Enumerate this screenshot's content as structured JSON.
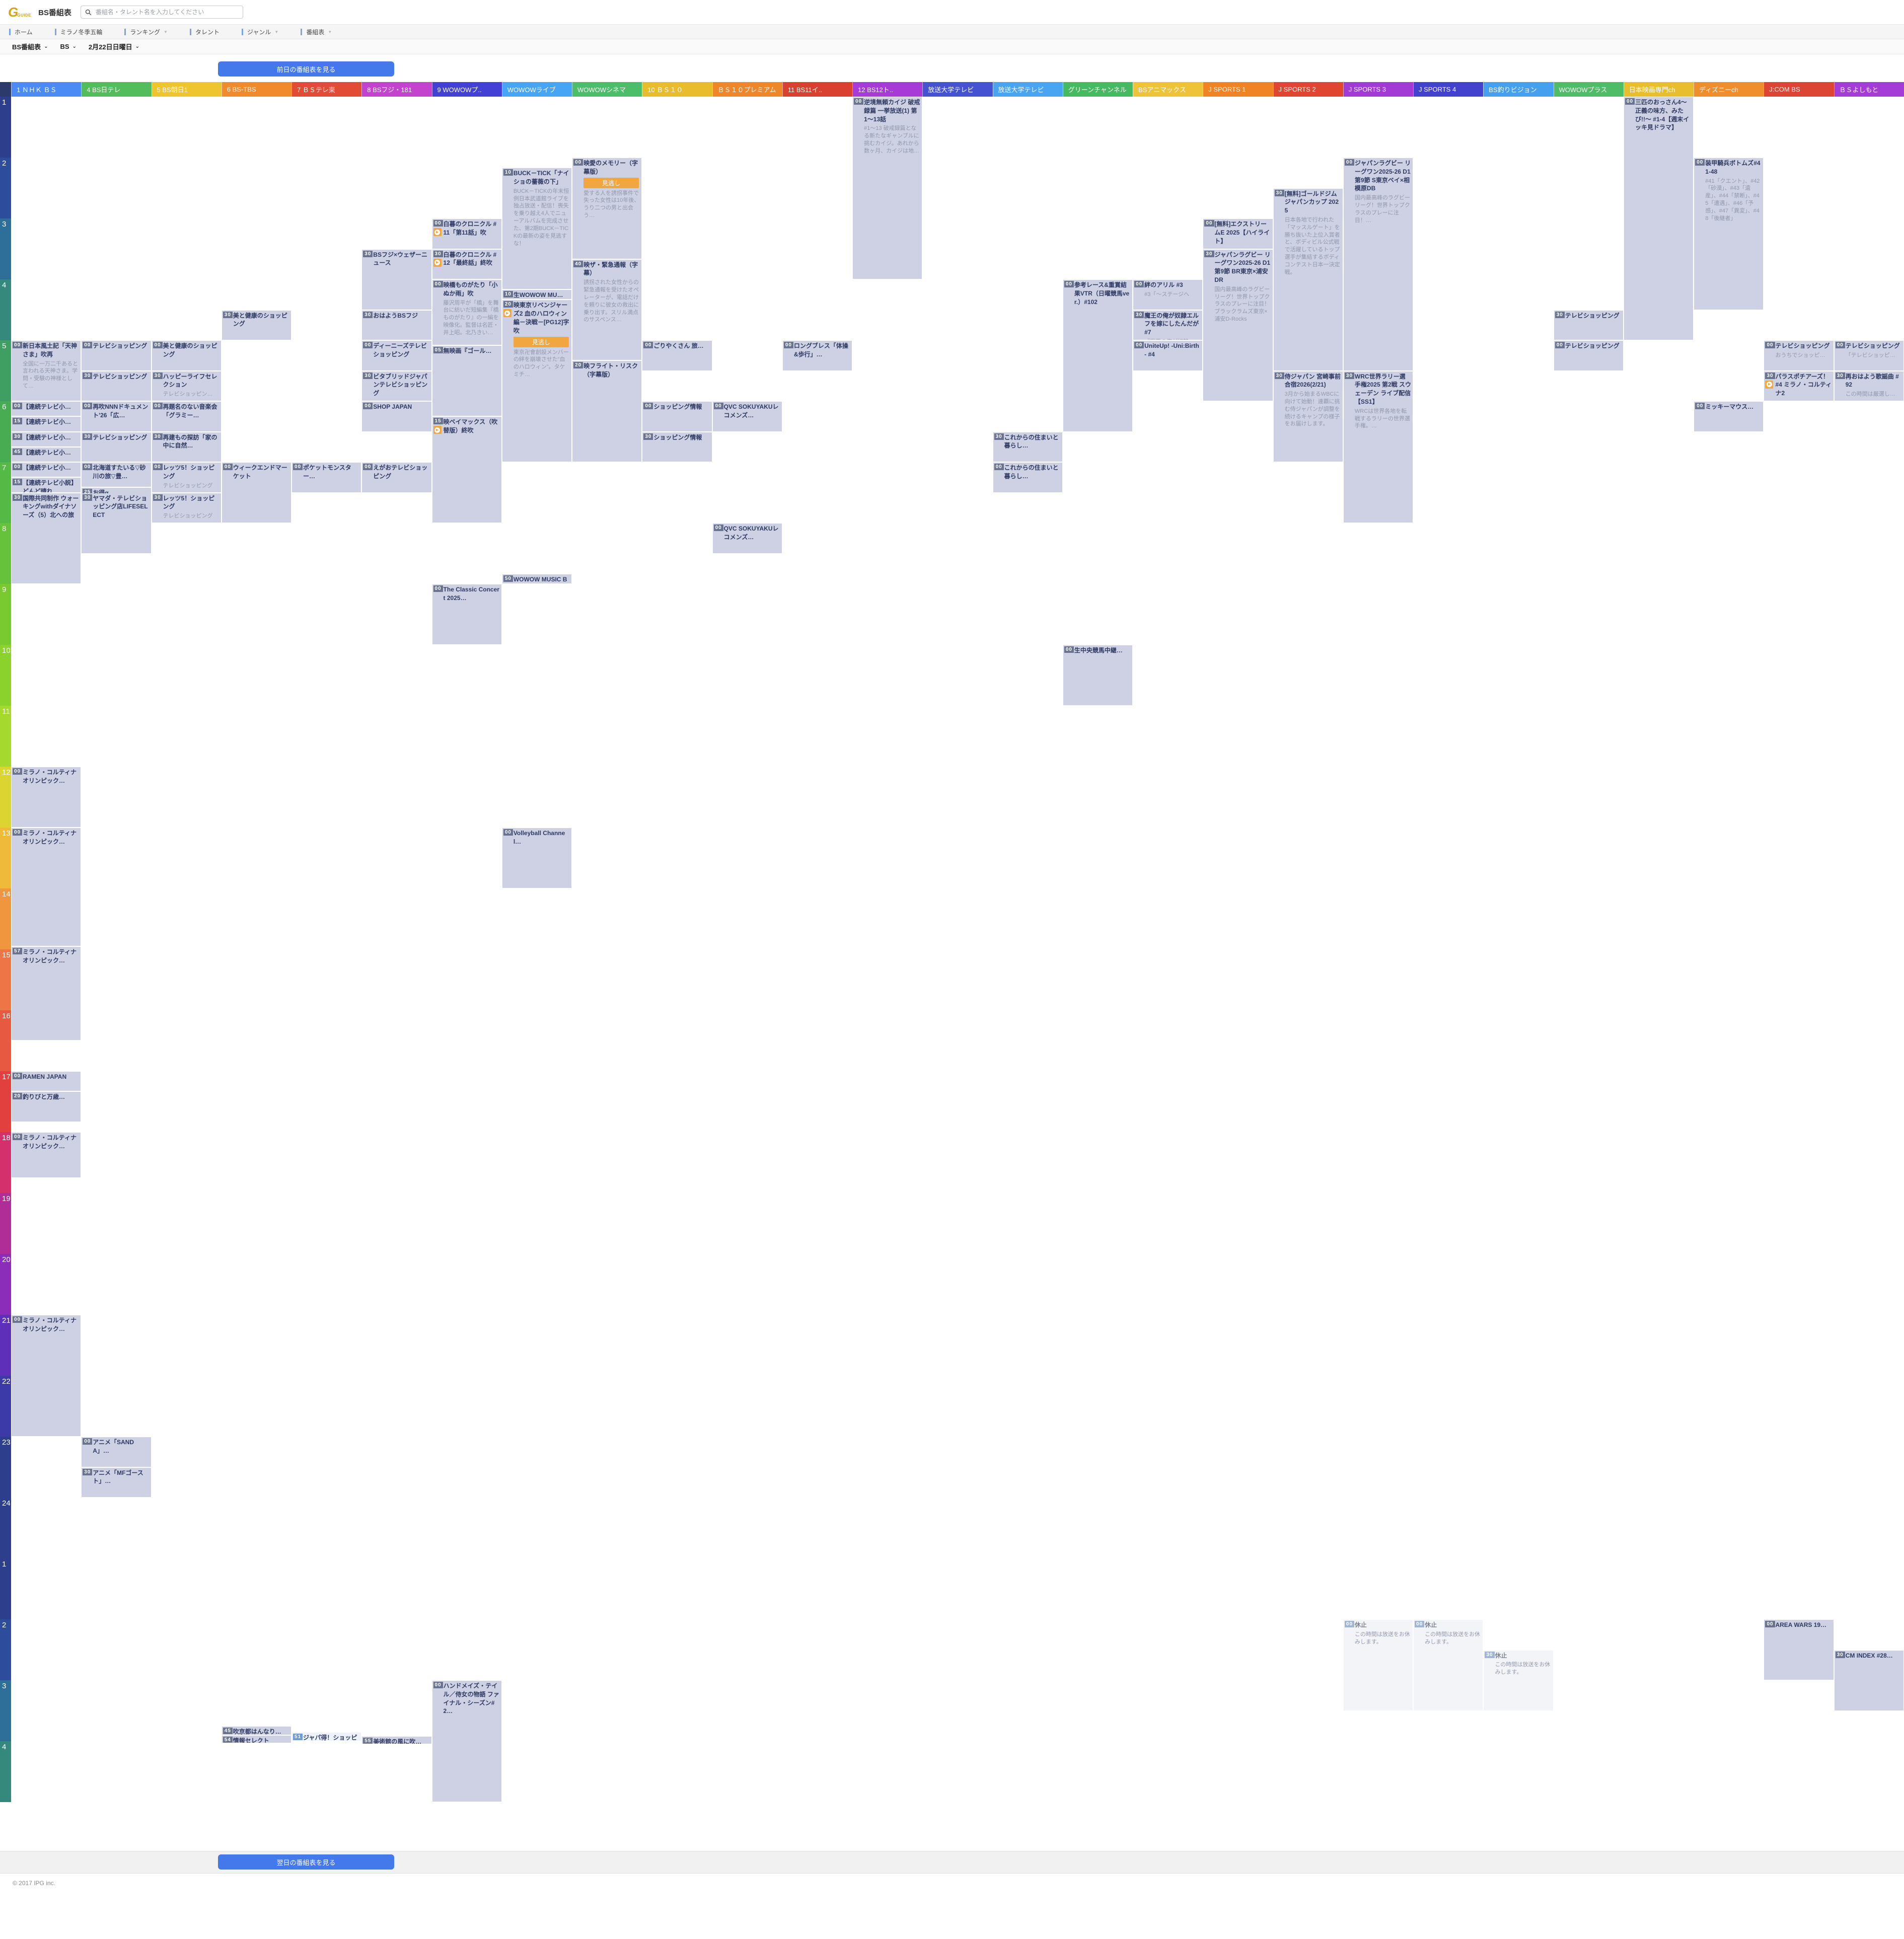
{
  "header": {
    "logo_g": "G",
    "logo_guide": "GUIDE",
    "title": "BS番組表",
    "search_placeholder": "番組名・タレント名を入力してください"
  },
  "nav": {
    "items": [
      {
        "label": "ホーム",
        "caret": false
      },
      {
        "label": "ミラノ冬季五輪",
        "caret": false
      },
      {
        "label": "ランキング",
        "caret": true
      },
      {
        "label": "タレント",
        "caret": false
      },
      {
        "label": "ジャンル",
        "caret": true
      },
      {
        "label": "番組表",
        "caret": true
      }
    ]
  },
  "filters": [
    {
      "label": "BS番組表"
    },
    {
      "label": "BS"
    },
    {
      "label": "2月22日日曜日"
    }
  ],
  "buttons": {
    "prev_day": "前日の番組表を見る",
    "next_day": "翌日の番組表を見る"
  },
  "footer": {
    "copyright": "© 2017 IPG inc."
  },
  "labels": {
    "miss_badge": "見逃し"
  },
  "grid": {
    "hours": [
      {
        "label": "1",
        "color": "#2c3e8c"
      },
      {
        "label": "2",
        "color": "#2d4d9c"
      },
      {
        "label": "3",
        "color": "#2e6f9a"
      },
      {
        "label": "4",
        "color": "#35897c"
      },
      {
        "label": "5",
        "color": "#3f9f63"
      },
      {
        "label": "6",
        "color": "#47ac52"
      },
      {
        "label": "7",
        "color": "#55b945"
      },
      {
        "label": "8",
        "color": "#66c23a"
      },
      {
        "label": "9",
        "color": "#79ca31"
      },
      {
        "label": "10",
        "color": "#8bd22c"
      },
      {
        "label": "11",
        "color": "#a6d92e"
      },
      {
        "label": "12",
        "color": "#dcd531"
      },
      {
        "label": "13",
        "color": "#efba3a"
      },
      {
        "label": "14",
        "color": "#f0963e"
      },
      {
        "label": "15",
        "color": "#ee7646"
      },
      {
        "label": "16",
        "color": "#e75940"
      },
      {
        "label": "17",
        "color": "#e2403f"
      },
      {
        "label": "18",
        "color": "#d3306c"
      },
      {
        "label": "19",
        "color": "#b02d97"
      },
      {
        "label": "20",
        "color": "#8b2db9"
      },
      {
        "label": "21",
        "color": "#5e2fb9"
      },
      {
        "label": "22",
        "color": "#3c3aa9"
      },
      {
        "label": "23",
        "color": "#2c3e8c"
      },
      {
        "label": "24",
        "color": "#2c3e8c"
      },
      {
        "label": "1",
        "color": "#2c3e8c"
      },
      {
        "label": "2",
        "color": "#2d4d9c"
      },
      {
        "label": "3",
        "color": "#2e6f9a"
      },
      {
        "label": "4",
        "color": "#35897c"
      }
    ],
    "channels": [
      {
        "name": "1 ＮＨＫ ＢＳ",
        "color": "#4b8bf5"
      },
      {
        "name": "4 BS日テレ",
        "color": "#53bd5c"
      },
      {
        "name": "5 BS朝日1",
        "color": "#eec52f"
      },
      {
        "name": "6 BS-TBS",
        "color": "#f08a2c"
      },
      {
        "name": "7 ＢＳテレ東",
        "color": "#e24b36"
      },
      {
        "name": "8 BSフジ・181",
        "color": "#c343cf"
      },
      {
        "name": "9 WOWOWプ..",
        "color": "#4340d6"
      },
      {
        "name": "WOWOWライブ",
        "color": "#46a5f5"
      },
      {
        "name": "WOWOWシネマ",
        "color": "#4cbd69"
      },
      {
        "name": "10 ＢＳ１０",
        "color": "#e8bc2d"
      },
      {
        "name": "ＢＳ１０プレミアム",
        "color": "#f0862a"
      },
      {
        "name": "11 BS11イ..",
        "color": "#da4030"
      },
      {
        "name": "12 BS12ト..",
        "color": "#a83ad8"
      },
      {
        "name": "放送大学テレビ",
        "color": "#4553d2"
      },
      {
        "name": "放送大学テレビ",
        "color": "#49a4f2"
      },
      {
        "name": "グリーンチャンネル",
        "color": "#46ba60"
      },
      {
        "name": "BSアニマックス",
        "color": "#eec33a"
      },
      {
        "name": "J SPORTS 1",
        "color": "#ef8326"
      },
      {
        "name": "J SPORTS 2",
        "color": "#e0462f"
      },
      {
        "name": "J SPORTS 3",
        "color": "#a43ad6"
      },
      {
        "name": "J SPORTS 4",
        "color": "#4342cf"
      },
      {
        "name": "BS釣りビジョン",
        "color": "#45a1f0"
      },
      {
        "name": "WOWOWプラス",
        "color": "#4fbd68"
      },
      {
        "name": "日本映画専門ch",
        "color": "#e9be2e"
      },
      {
        "name": "ディズニーch",
        "color": "#f08e2d"
      },
      {
        "name": "J:COM BS",
        "color": "#dc4534"
      },
      {
        "name": "ＢＳよしもと",
        "color": "#a63cd8"
      }
    ],
    "programs": [
      {
        "ch": 0,
        "h": 5,
        "m": 0,
        "dur": 60,
        "title": "新日本風土記「天神さま」吹再",
        "desc": "全国に一万二千あると言われる天神さま。学問・受験の神様として…"
      },
      {
        "ch": 0,
        "h": 6,
        "m": 0,
        "dur": 15,
        "title": "【連続テレビ小…"
      },
      {
        "ch": 0,
        "h": 6,
        "m": 15,
        "dur": 15,
        "title": "【連続テレビ小…"
      },
      {
        "ch": 0,
        "h": 6,
        "m": 30,
        "dur": 15,
        "title": "【連続テレビ小…"
      },
      {
        "ch": 0,
        "h": 6,
        "m": 45,
        "dur": 15,
        "title": "【連続テレビ小…"
      },
      {
        "ch": 0,
        "h": 7,
        "m": 0,
        "dur": 15,
        "title": "【連続テレビ小…"
      },
      {
        "ch": 0,
        "h": 7,
        "m": 15,
        "dur": 15,
        "title": "【連続テレビ小説】どんど晴れ"
      },
      {
        "ch": 0,
        "h": 7,
        "m": 30,
        "dur": 90,
        "title": "国際共同制作 ウォーキングwithダイナソーズ（5）北への旅"
      },
      {
        "ch": 0,
        "h": 12,
        "m": 0,
        "dur": 60,
        "title": "ミラノ・コルティナオリンピック…"
      },
      {
        "ch": 0,
        "h": 13,
        "m": 0,
        "dur": 117,
        "title": "ミラノ・コルティナオリンピック…"
      },
      {
        "ch": 0,
        "h": 14,
        "m": 57,
        "dur": 93,
        "title": "ミラノ・コルティナオリンピック…"
      },
      {
        "ch": 0,
        "h": 17,
        "m": 0,
        "dur": 20,
        "title": "RAMEN JAPAN"
      },
      {
        "ch": 0,
        "h": 17,
        "m": 20,
        "dur": 30,
        "title": "釣りびと万歳…"
      },
      {
        "ch": 0,
        "h": 18,
        "m": 0,
        "dur": 45,
        "title": "ミラノ・コルティナオリンピック…"
      },
      {
        "ch": 0,
        "h": 21,
        "m": 0,
        "dur": 120,
        "title": "ミラノ・コルティナオリンピック…"
      },
      {
        "ch": 1,
        "h": 5,
        "m": 0,
        "dur": 30,
        "title": "テレビショッピング"
      },
      {
        "ch": 1,
        "h": 5,
        "m": 30,
        "dur": 30,
        "title": "テレビショッピング"
      },
      {
        "ch": 1,
        "h": 6,
        "m": 0,
        "dur": 30,
        "title": "再吹NNNドキュメント'26「広…"
      },
      {
        "ch": 1,
        "h": 6,
        "m": 30,
        "dur": 30,
        "title": "テレビショッピング"
      },
      {
        "ch": 1,
        "h": 7,
        "m": 0,
        "dur": 25,
        "title": "北海道すたいる▽砂川の旅▽豊…"
      },
      {
        "ch": 1,
        "h": 7,
        "m": 25,
        "dur": 5,
        "title": "お得α"
      },
      {
        "ch": 1,
        "h": 7,
        "m": 30,
        "dur": 60,
        "title": "ヤマダ・テレビショッピング店LIFESELECT"
      },
      {
        "ch": 1,
        "h": 23,
        "m": 0,
        "dur": 30,
        "title": "アニメ「SANDA」…"
      },
      {
        "ch": 1,
        "h": 23,
        "m": 30,
        "dur": 30,
        "title": "アニメ「MFゴースト」…"
      },
      {
        "ch": 2,
        "h": 5,
        "m": 0,
        "dur": 30,
        "title": "美と健康のショッピング"
      },
      {
        "ch": 2,
        "h": 5,
        "m": 30,
        "dur": 30,
        "title": "ハッピーライフセレクション",
        "desc": "テレビショッピン…"
      },
      {
        "ch": 2,
        "h": 6,
        "m": 0,
        "dur": 30,
        "title": "再題名のない音楽会「グラミー…"
      },
      {
        "ch": 2,
        "h": 6,
        "m": 30,
        "dur": 30,
        "title": "再建もの探訪「家の中に自然…"
      },
      {
        "ch": 2,
        "h": 7,
        "m": 0,
        "dur": 30,
        "title": "レッツ5！ショッピング",
        "desc": "テレビショッピング"
      },
      {
        "ch": 2,
        "h": 7,
        "m": 30,
        "dur": 30,
        "title": "レッツ5！ショッピング",
        "desc": "テレビショッピング"
      },
      {
        "ch": 3,
        "h": 4,
        "m": 30,
        "dur": 30,
        "title": "美と健康のショッピング"
      },
      {
        "ch": 3,
        "h": 7,
        "m": 0,
        "dur": 60,
        "title": "ウィークエンドマーケット"
      },
      {
        "ch": 3,
        "h": 27,
        "m": 45,
        "dur": 9,
        "title": "吹京都はんなり…"
      },
      {
        "ch": 3,
        "h": 27,
        "m": 54,
        "dur": 6,
        "title": "情報セレクト"
      },
      {
        "ch": 4,
        "h": 7,
        "m": 0,
        "dur": 30,
        "title": "ポケットモンスター…"
      },
      {
        "ch": 4,
        "h": 27,
        "m": 51,
        "dur": 9,
        "title": "ジャパ得！ショッピング",
        "desc": "ジャパネットたか…",
        "now": 1
      },
      {
        "ch": 5,
        "h": 3,
        "m": 30,
        "dur": 60,
        "title": "BSフジ×ウェザーニュース"
      },
      {
        "ch": 5,
        "h": 4,
        "m": 30,
        "dur": 30,
        "title": "おはようBSフジ"
      },
      {
        "ch": 5,
        "h": 5,
        "m": 0,
        "dur": 30,
        "title": "ディーニーズテレビショッピング"
      },
      {
        "ch": 5,
        "h": 5,
        "m": 30,
        "dur": 30,
        "title": "ビタブリッドジャパンテレビショッピング"
      },
      {
        "ch": 5,
        "h": 6,
        "m": 0,
        "dur": 30,
        "title": "SHOP JAPAN"
      },
      {
        "ch": 5,
        "h": 7,
        "m": 0,
        "dur": 30,
        "title": "えがおテレビショッピング"
      },
      {
        "ch": 5,
        "h": 27,
        "m": 55,
        "dur": 5,
        "title": "美術館の風に吹…"
      },
      {
        "ch": 6,
        "h": 3,
        "m": 0,
        "dur": 30,
        "title": "白暮のクロニクル #11「第11話」吹",
        "p": 1
      },
      {
        "ch": 6,
        "h": 3,
        "m": 30,
        "dur": 30,
        "title": "白暮のクロニクル #12「最終話」終吹",
        "p": 1
      },
      {
        "ch": 6,
        "h": 4,
        "m": 0,
        "dur": 65,
        "title": "映橋ものがたり「小ぬか雨」吹",
        "desc": "藤沢周平が「橋」を舞台に紡いだ短編集『橋ものがたり』の一編を映像化。監督は名匠・井上昭。北乃きい…"
      },
      {
        "ch": 6,
        "h": 5,
        "m": 5,
        "dur": 70,
        "title": "無映画『ゴール…"
      },
      {
        "ch": 6,
        "h": 6,
        "m": 15,
        "dur": 105,
        "title": "映ベイマックス（吹替版）終吹",
        "p": 1
      },
      {
        "ch": 6,
        "h": 9,
        "m": 0,
        "dur": 60,
        "title": "The Classic Concert 2025…"
      },
      {
        "ch": 6,
        "h": 27,
        "m": 0,
        "dur": 120,
        "title": "ハンドメイズ・テイル／侍女の物語 ファイナル・シーズン#2…"
      },
      {
        "ch": 7,
        "h": 2,
        "m": 10,
        "dur": 120,
        "title": "BUCK－TICK「ナイショの薔薇の下」",
        "desc": "BUCK－TICKの年末恒例日本武道館ライブを独占放送・配信！喪失を乗り越え4人でニューアルバムを完成させた、第2期BUCK－TICKの最新の姿を見逃すな！"
      },
      {
        "ch": 7,
        "h": 4,
        "m": 10,
        "dur": 10,
        "title": "生WOWOW MU…"
      },
      {
        "ch": 7,
        "h": 4,
        "m": 20,
        "dur": 160,
        "title": "映東京リベンジャーズ2 血のハロウィン編－決戦－[PG12]字吹",
        "desc": "東京卍會創設メンバーの絆を崩壊させた“血のハロウィン”。タケミチ…",
        "p": 1,
        "g": 1
      },
      {
        "ch": 7,
        "h": 8,
        "m": 50,
        "dur": 10,
        "title": "WOWOW MUSIC BREAK…"
      },
      {
        "ch": 7,
        "h": 13,
        "m": 0,
        "dur": 60,
        "title": "Volleyball Channel…"
      },
      {
        "ch": 8,
        "h": 2,
        "m": 0,
        "dur": 100,
        "title": "映愛のメモリー（字幕版）",
        "desc": "愛する人を誘拐事件で失った女性は10年後、うり二つの男と出会う…",
        "g": 1
      },
      {
        "ch": 8,
        "h": 3,
        "m": 40,
        "dur": 100,
        "title": "映ザ・緊急通報（字幕）",
        "desc": "誘拐された女性からの緊急通報を受けたオペレーターが、電話だけを頼りに彼女の救出に乗り出す。スリル満点のサスペンス…"
      },
      {
        "ch": 8,
        "h": 5,
        "m": 20,
        "dur": 100,
        "title": "映フライト・リスク（字幕版）"
      },
      {
        "ch": 9,
        "h": 5,
        "m": 0,
        "dur": 30,
        "title": "ごりやくさん 旅…"
      },
      {
        "ch": 9,
        "h": 6,
        "m": 0,
        "dur": 30,
        "title": "ショッピング情報"
      },
      {
        "ch": 9,
        "h": 6,
        "m": 30,
        "dur": 30,
        "title": "ショッピング情報"
      },
      {
        "ch": 10,
        "h": 6,
        "m": 0,
        "dur": 30,
        "title": "QVC SOKUYAKUレコメンズ…"
      },
      {
        "ch": 10,
        "h": 8,
        "m": 0,
        "dur": 30,
        "title": "QVC SOKUYAKUレコメンズ…"
      },
      {
        "ch": 11,
        "h": 5,
        "m": 0,
        "dur": 30,
        "title": "ロングブレス「体操&歩行」…"
      },
      {
        "ch": 12,
        "h": 1,
        "m": 0,
        "dur": 180,
        "title": "逆境無頼カイジ 破戒録篇 一挙放送(1) 第1〜13話",
        "desc": "#1〜13 破戒録篇となる新たなギャンブルに挑むカイジ。あれから数ヶ月、カイジは地…"
      },
      {
        "ch": 14,
        "h": 6,
        "m": 30,
        "dur": 30,
        "title": "これからの住まいと暮らし…"
      },
      {
        "ch": 14,
        "h": 7,
        "m": 0,
        "dur": 30,
        "title": "これからの住まいと暮らし…"
      },
      {
        "ch": 15,
        "h": 4,
        "m": 0,
        "dur": 150,
        "title": "参考レース&重賞結果VTR（日曜競馬ver.）#102"
      },
      {
        "ch": 15,
        "h": 10,
        "m": 0,
        "dur": 60,
        "title": "生中央競馬中継…"
      },
      {
        "ch": 16,
        "h": 4,
        "m": 0,
        "dur": 30,
        "title": "絆のアリル #3",
        "desc": "#3「〜ステージへ"
      },
      {
        "ch": 16,
        "h": 4,
        "m": 30,
        "dur": 30,
        "title": "魔王の俺が奴隷エルフを嫁にしたんだが #7",
        "desc": "『魔王の俺が奴隷…"
      },
      {
        "ch": 16,
        "h": 5,
        "m": 0,
        "dur": 30,
        "title": "UniteUp! -Uni:Birth- #4"
      },
      {
        "ch": 17,
        "h": 3,
        "m": 0,
        "dur": 30,
        "title": "[無料]エクストリームE 2025【ハイライト】"
      },
      {
        "ch": 17,
        "h": 3,
        "m": 30,
        "dur": 150,
        "title": "ジャパンラグビー リーグワン2025-26 D1 第9節 BR東京×浦安DR",
        "desc": "国内最高峰のラグビーリーグ！世界トップクラスのプレーに注目！ブラックラムズ東京×浦安D-Rocks"
      },
      {
        "ch": 18,
        "h": 2,
        "m": 30,
        "dur": 180,
        "title": "[無料]ゴールドジムジャパンカップ 2025",
        "desc": "日本各地で行われた「マッスルゲート」を勝ち抜いた上位入賞者と、ボディビル公式戦で活躍しているトップ選手が集結するボディコンテスト日本一決定戦。"
      },
      {
        "ch": 18,
        "h": 5,
        "m": 30,
        "dur": 90,
        "title": "侍ジャパン 宮崎事前合宿2026(2/21)",
        "desc": "3月から始まるWBCに向けて始動！連覇に挑む侍ジャパンが調整を続けるキャンプの様子をお届けします。"
      },
      {
        "ch": 19,
        "h": 2,
        "m": 0,
        "dur": 210,
        "title": "ジャパンラグビー リーグワン2025-26 D1 第9節 S東京ベイ×相模原DB",
        "desc": "国内最高峰のラグビーリーグ！世界トップクラスのプレーに注目！…"
      },
      {
        "ch": 19,
        "h": 5,
        "m": 30,
        "dur": 150,
        "title": "WRC世界ラリー選手権2025 第2戦 スウェーデン ライブ配信【SS1】",
        "desc": "WRCは世界各地を転戦するラリーの世界選手権。…"
      },
      {
        "ch": 19,
        "h": 26,
        "m": 0,
        "dur": 90,
        "title": "休止",
        "desc": "この時間は放送をお休みします。",
        "off": 1
      },
      {
        "ch": 20,
        "h": 26,
        "m": 0,
        "dur": 90,
        "title": "休止",
        "desc": "この時間は放送をお休みします。",
        "off": 1
      },
      {
        "ch": 21,
        "h": 26,
        "m": 30,
        "dur": 60,
        "title": "休止",
        "desc": "この時間は放送をお休みします。",
        "off": 1
      },
      {
        "ch": 22,
        "h": 4,
        "m": 30,
        "dur": 30,
        "title": "テレビショッピング"
      },
      {
        "ch": 22,
        "h": 5,
        "m": 0,
        "dur": 30,
        "title": "テレビショッピング"
      },
      {
        "ch": 23,
        "h": 1,
        "m": 0,
        "dur": 240,
        "title": "三匹のおっさん4〜正義の味方、みたび!!〜 #1-4【週末イッキ見ドラマ】"
      },
      {
        "ch": 24,
        "h": 2,
        "m": 0,
        "dur": 150,
        "title": "装甲騎兵ボトムズ#41-48",
        "desc": "#41「クエント」、#42「砂漠」、#43「遺産」、#44「禁断」、#45「遭遇」、#46「予感」、#47「異変」、#48「後継者」"
      },
      {
        "ch": 24,
        "h": 6,
        "m": 0,
        "dur": 30,
        "title": "ミッキーマウス…"
      },
      {
        "ch": 25,
        "h": 5,
        "m": 0,
        "dur": 30,
        "title": "テレビショッピング",
        "desc": "おうちでショッピ…"
      },
      {
        "ch": 25,
        "h": 5,
        "m": 30,
        "dur": 30,
        "title": "パラスポチアーズ！#4 ミラノ・コルティナ2",
        "p": 1
      },
      {
        "ch": 25,
        "h": 26,
        "m": 0,
        "dur": 60,
        "title": "AREA WARS 19…"
      },
      {
        "ch": 26,
        "h": 5,
        "m": 0,
        "dur": 30,
        "title": "テレビショッピング",
        "desc": "「テレビショッピ…"
      },
      {
        "ch": 26,
        "h": 5,
        "m": 30,
        "dur": 30,
        "title": "再おはよう歌謡曲 #92",
        "desc": "この時間は厳選し…"
      },
      {
        "ch": 26,
        "h": 26,
        "m": 30,
        "dur": 60,
        "title": "CM INDEX #28…"
      }
    ]
  }
}
